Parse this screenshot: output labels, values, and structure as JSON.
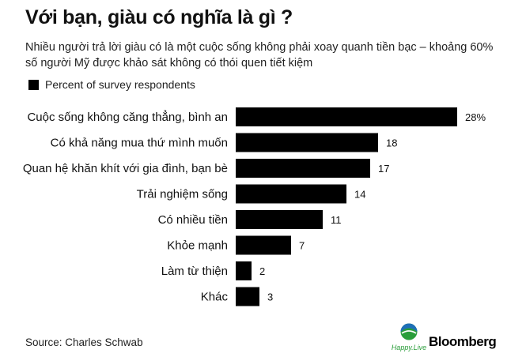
{
  "title": "Với bạn, giàu có nghĩa là gì ?",
  "subtitle": "Nhiều người trả lời giàu có là một cuộc sống không phải xoay quanh tiền bạc – khoảng 60% số người Mỹ được khảo sát không có thói quen tiết kiệm",
  "source": "Source: Charles Schwab",
  "logos": {
    "happylive": "Happy.Live",
    "bloomberg": "Bloomberg"
  },
  "chart_data": {
    "type": "bar",
    "orientation": "horizontal",
    "legend": [
      "Percent of survey respondents"
    ],
    "categories": [
      "Cuộc sống không căng thẳng, bình an",
      "Có khả năng mua thứ mình muốn",
      "Quan hệ khăn khít với gia đình, bạn bè",
      "Trải nghiệm sống",
      "Có nhiều tiền",
      "Khỏe mạnh",
      "Làm từ thiện",
      "Khác"
    ],
    "values": [
      28,
      18,
      17,
      14,
      11,
      7,
      2,
      3
    ],
    "value_labels": [
      "28%",
      "18",
      "17",
      "14",
      "11",
      "7",
      "2",
      "3"
    ],
    "series": [
      {
        "name": "Percent of survey respondents",
        "values": [
          28,
          18,
          17,
          14,
          11,
          7,
          2,
          3
        ]
      }
    ],
    "bar_color": "#000000",
    "xlim": [
      0,
      28
    ],
    "grid": false
  }
}
